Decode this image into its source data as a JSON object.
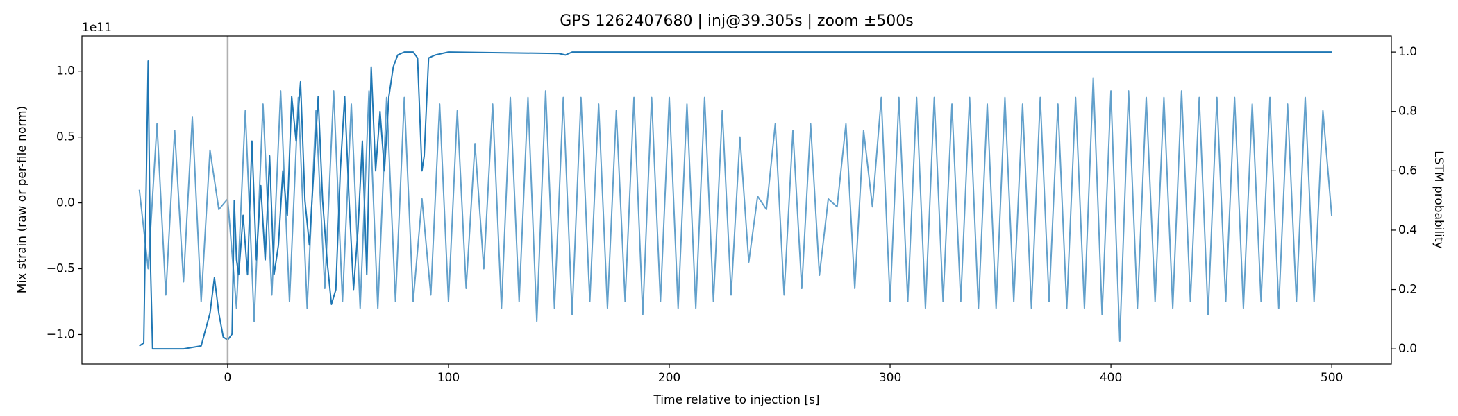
{
  "chart_data": {
    "type": "line",
    "title": "GPS 1262407680 | inj@39.305s | zoom ±500s",
    "xlabel": "Time relative to injection [s]",
    "ylabel": "Mix strain (raw or per-file norm)",
    "y2label": "LSTM probability",
    "y_offset_label": "1e11",
    "xlim": [
      -66,
      527
    ],
    "xticks": [
      0,
      100,
      200,
      300,
      400,
      500
    ],
    "ylim": [
      -1.224,
      1.267
    ],
    "yticks": [
      {
        "value": -1,
        "label": "−1.0"
      },
      {
        "value": -0.5,
        "label": "−0.5"
      },
      {
        "value": 0,
        "label": "0.0"
      },
      {
        "value": 0.5,
        "label": "0.5"
      },
      {
        "value": 1,
        "label": "1.0"
      }
    ],
    "y2lim": [
      -0.051,
      1.054
    ],
    "y2ticks": [
      {
        "value": 0,
        "label": "0.0"
      },
      {
        "value": 0.2,
        "label": "0.2"
      },
      {
        "value": 0.4,
        "label": "0.4"
      },
      {
        "value": 0.6,
        "label": "0.6"
      },
      {
        "value": 0.8,
        "label": "0.8"
      },
      {
        "value": 1,
        "label": "1.0"
      }
    ],
    "vlines": [
      0
    ],
    "vline_color": "#b0b0b0",
    "grid": false,
    "series": [
      {
        "color": "#62a0cb",
        "x": [
          -40,
          -36,
          -32,
          -28,
          -24,
          -20,
          -16,
          -12,
          -8,
          -4,
          0,
          4,
          8,
          12,
          16,
          20,
          24,
          28,
          32,
          36,
          40,
          44,
          48,
          52,
          56,
          60,
          64,
          68,
          72,
          76,
          80,
          84,
          88,
          92,
          96,
          100,
          104,
          108,
          112,
          116,
          120,
          124,
          128,
          132,
          136,
          140,
          144,
          148,
          152,
          156,
          160,
          164,
          168,
          172,
          176,
          180,
          184,
          188,
          192,
          196,
          200,
          204,
          208,
          212,
          216,
          220,
          224,
          228,
          232,
          236,
          240,
          244,
          248,
          252,
          256,
          260,
          264,
          268,
          272,
          276,
          280,
          284,
          288,
          292,
          296,
          300,
          304,
          308,
          312,
          316,
          320,
          324,
          328,
          332,
          336,
          340,
          344,
          348,
          352,
          356,
          360,
          364,
          368,
          372,
          376,
          380,
          384,
          388,
          392,
          396,
          400,
          404,
          408,
          412,
          416,
          420,
          424,
          428,
          432,
          436,
          440,
          444,
          448,
          452,
          456,
          460,
          464,
          468,
          472,
          476,
          480,
          484,
          488,
          492,
          496,
          500
        ],
        "values": [
          0.1,
          -0.5,
          0.6,
          -0.7,
          0.55,
          -0.6,
          0.65,
          -0.75,
          0.4,
          -0.05,
          0.03,
          -0.8,
          0.7,
          -0.9,
          0.75,
          -0.7,
          0.85,
          -0.75,
          0.8,
          -0.8,
          0.7,
          -0.65,
          0.85,
          -0.75,
          0.75,
          -0.8,
          0.85,
          -0.8,
          0.8,
          -0.75,
          0.8,
          -0.75,
          0.03,
          -0.7,
          0.75,
          -0.75,
          0.7,
          -0.65,
          0.45,
          -0.5,
          0.75,
          -0.8,
          0.8,
          -0.75,
          0.8,
          -0.9,
          0.85,
          -0.8,
          0.8,
          -0.85,
          0.8,
          -0.75,
          0.75,
          -0.8,
          0.7,
          -0.75,
          0.8,
          -0.85,
          0.8,
          -0.75,
          0.8,
          -0.8,
          0.75,
          -0.8,
          0.8,
          -0.75,
          0.7,
          -0.7,
          0.5,
          -0.45,
          0.05,
          -0.05,
          0.6,
          -0.7,
          0.55,
          -0.65,
          0.6,
          -0.55,
          0.03,
          -0.03,
          0.6,
          -0.65,
          0.55,
          -0.03,
          0.8,
          -0.75,
          0.8,
          -0.75,
          0.8,
          -0.8,
          0.8,
          -0.75,
          0.75,
          -0.75,
          0.8,
          -0.8,
          0.75,
          -0.8,
          0.8,
          -0.75,
          0.75,
          -0.8,
          0.8,
          -0.75,
          0.75,
          -0.8,
          0.8,
          -0.8,
          0.95,
          -0.85,
          0.85,
          -1.05,
          0.85,
          -0.8,
          0.8,
          -0.75,
          0.8,
          -0.8,
          0.85,
          -0.75,
          0.8,
          -0.85,
          0.8,
          -0.75,
          0.8,
          -0.8,
          0.75,
          -0.75,
          0.8,
          -0.8,
          0.75,
          -0.75,
          0.8,
          -0.75,
          0.7,
          -0.1
        ]
      },
      {
        "color": "#1f77b4",
        "axis": "y2",
        "x": [
          -40,
          -38,
          -37,
          -36,
          -35,
          -34,
          -20,
          -12,
          -8,
          -6,
          -4,
          -2,
          0,
          2,
          3,
          4,
          5,
          7,
          9,
          11,
          13,
          15,
          17,
          19,
          21,
          23,
          25,
          27,
          29,
          31,
          33,
          35,
          37,
          39,
          41,
          43,
          45,
          47,
          49,
          51,
          53,
          55,
          57,
          59,
          61,
          63,
          65,
          67,
          69,
          71,
          73,
          75,
          77,
          80,
          84,
          86,
          88,
          89,
          91,
          94,
          100,
          150,
          153,
          156,
          500
        ],
        "values": [
          0.01,
          0.02,
          0.5,
          0.97,
          0.3,
          0.0,
          0.0,
          0.01,
          0.12,
          0.24,
          0.12,
          0.04,
          0.03,
          0.05,
          0.5,
          0.3,
          0.25,
          0.45,
          0.25,
          0.7,
          0.3,
          0.55,
          0.3,
          0.65,
          0.25,
          0.35,
          0.6,
          0.45,
          0.85,
          0.7,
          0.9,
          0.5,
          0.35,
          0.6,
          0.85,
          0.5,
          0.3,
          0.15,
          0.2,
          0.6,
          0.85,
          0.5,
          0.2,
          0.4,
          0.7,
          0.25,
          0.95,
          0.6,
          0.8,
          0.6,
          0.85,
          0.95,
          0.99,
          1.0,
          1.0,
          0.98,
          0.6,
          0.65,
          0.98,
          0.99,
          1.0,
          0.995,
          0.99,
          1.0,
          1.0
        ]
      }
    ]
  }
}
